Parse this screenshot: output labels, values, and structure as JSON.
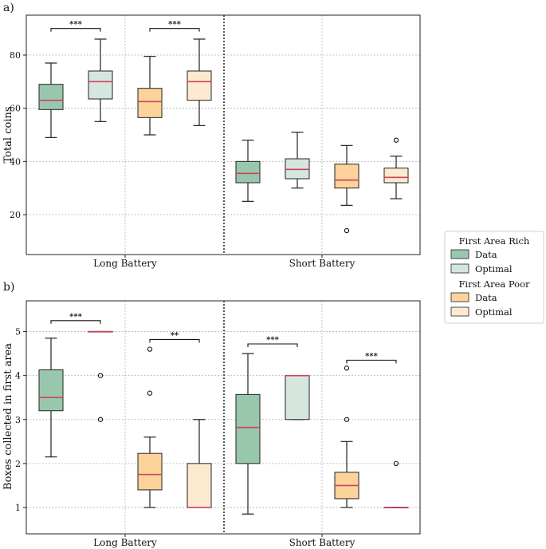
{
  "colors": {
    "rich_data": "#99c7ad",
    "rich_optimal": "#d5e6df",
    "poor_data": "#fbd39b",
    "poor_optimal": "#fde9d0",
    "median": "#d43f5b",
    "edge": "#222222",
    "grid": "#b3b3b3"
  },
  "legend": {
    "groups": [
      {
        "title": "First Area Rich",
        "entries": [
          {
            "label": "Data",
            "color_key": "rich_data"
          },
          {
            "label": "Optimal",
            "color_key": "rich_optimal"
          }
        ]
      },
      {
        "title": "First Area Poor",
        "entries": [
          {
            "label": "Data",
            "color_key": "poor_data"
          },
          {
            "label": "Optimal",
            "color_key": "poor_optimal"
          }
        ]
      }
    ]
  },
  "chart_data": [
    {
      "panel": "a)",
      "type": "box",
      "ylabel": "Total coins",
      "ylim": [
        5,
        95
      ],
      "yticks": [
        20,
        40,
        60,
        80
      ],
      "categories": [
        "Long Battery",
        "Short Battery"
      ],
      "series_order": [
        "Rich Data",
        "Rich Optimal",
        "Poor Data",
        "Poor Optimal"
      ],
      "boxes": [
        {
          "category": "Long Battery",
          "series": "Rich Data",
          "color_key": "rich_data",
          "whislo": 49,
          "q1": 59.5,
          "med": 63,
          "q3": 69,
          "whishi": 77,
          "fliers": []
        },
        {
          "category": "Long Battery",
          "series": "Rich Optimal",
          "color_key": "rich_optimal",
          "whislo": 55,
          "q1": 63.5,
          "med": 70,
          "q3": 74,
          "whishi": 86,
          "fliers": []
        },
        {
          "category": "Long Battery",
          "series": "Poor Data",
          "color_key": "poor_data",
          "whislo": 50,
          "q1": 56.5,
          "med": 62.5,
          "q3": 67.5,
          "whishi": 79.5,
          "fliers": []
        },
        {
          "category": "Long Battery",
          "series": "Poor Optimal",
          "color_key": "poor_optimal",
          "whislo": 53.5,
          "q1": 63,
          "med": 70,
          "q3": 74,
          "whishi": 86,
          "fliers": []
        },
        {
          "category": "Short Battery",
          "series": "Rich Data",
          "color_key": "rich_data",
          "whislo": 25,
          "q1": 32,
          "med": 35.5,
          "q3": 40,
          "whishi": 48,
          "fliers": []
        },
        {
          "category": "Short Battery",
          "series": "Rich Optimal",
          "color_key": "rich_optimal",
          "whislo": 30,
          "q1": 33.5,
          "med": 37,
          "q3": 41,
          "whishi": 51,
          "fliers": []
        },
        {
          "category": "Short Battery",
          "series": "Poor Data",
          "color_key": "poor_data",
          "whislo": 23.5,
          "q1": 30,
          "med": 33,
          "q3": 39,
          "whishi": 46,
          "fliers": [
            14
          ]
        },
        {
          "category": "Short Battery",
          "series": "Poor Optimal",
          "color_key": "poor_optimal",
          "whislo": 26,
          "q1": 32,
          "med": 34,
          "q3": 37.5,
          "whishi": 42,
          "fliers": [
            48
          ]
        }
      ],
      "significance": [
        {
          "from": 0,
          "to": 1,
          "y": 90,
          "label": "***"
        },
        {
          "from": 2,
          "to": 3,
          "y": 90,
          "label": "***"
        }
      ]
    },
    {
      "panel": "b)",
      "type": "box",
      "ylabel": "Boxes collected in first area",
      "ylim": [
        0.4,
        5.7
      ],
      "yticks": [
        1,
        2,
        3,
        4,
        5
      ],
      "categories": [
        "Long Battery",
        "Short Battery"
      ],
      "series_order": [
        "Rich Data",
        "Rich Optimal",
        "Poor Data",
        "Poor Optimal"
      ],
      "boxes": [
        {
          "category": "Long Battery",
          "series": "Rich Data",
          "color_key": "rich_data",
          "whislo": 2.15,
          "q1": 3.2,
          "med": 3.5,
          "q3": 4.13,
          "whishi": 4.85,
          "fliers": []
        },
        {
          "category": "Long Battery",
          "series": "Rich Optimal",
          "color_key": "rich_optimal",
          "whislo": 5,
          "q1": 5,
          "med": 5,
          "q3": 5,
          "whishi": 5,
          "fliers": [
            4,
            3
          ]
        },
        {
          "category": "Long Battery",
          "series": "Poor Data",
          "color_key": "poor_data",
          "whislo": 1,
          "q1": 1.4,
          "med": 1.75,
          "q3": 2.23,
          "whishi": 2.6,
          "fliers": [
            4.6,
            3.6
          ]
        },
        {
          "category": "Long Battery",
          "series": "Poor Optimal",
          "color_key": "poor_optimal",
          "whislo": 1,
          "q1": 1,
          "med": 1,
          "q3": 2,
          "whishi": 3,
          "fliers": []
        },
        {
          "category": "Short Battery",
          "series": "Rich Data",
          "color_key": "rich_data",
          "whislo": 0.85,
          "q1": 2,
          "med": 2.82,
          "q3": 3.57,
          "whishi": 4.5,
          "fliers": []
        },
        {
          "category": "Short Battery",
          "series": "Rich Optimal",
          "color_key": "rich_optimal",
          "whislo": 3,
          "q1": 3,
          "med": 4,
          "q3": 4,
          "whishi": 4,
          "fliers": []
        },
        {
          "category": "Short Battery",
          "series": "Poor Data",
          "color_key": "poor_data",
          "whislo": 1,
          "q1": 1.2,
          "med": 1.5,
          "q3": 1.8,
          "whishi": 2.5,
          "fliers": [
            4.17,
            3
          ]
        },
        {
          "category": "Short Battery",
          "series": "Poor Optimal",
          "color_key": "poor_optimal",
          "whislo": 1,
          "q1": 1,
          "med": 1,
          "q3": 1,
          "whishi": 1,
          "fliers": [
            2
          ]
        }
      ],
      "significance": [
        {
          "from": 0,
          "to": 1,
          "y": 5.25,
          "label": "***"
        },
        {
          "from": 2,
          "to": 3,
          "y": 4.82,
          "label": "**"
        },
        {
          "from": 4,
          "to": 5,
          "y": 4.72,
          "label": "***"
        },
        {
          "from": 6,
          "to": 7,
          "y": 4.35,
          "label": "***"
        }
      ]
    }
  ]
}
